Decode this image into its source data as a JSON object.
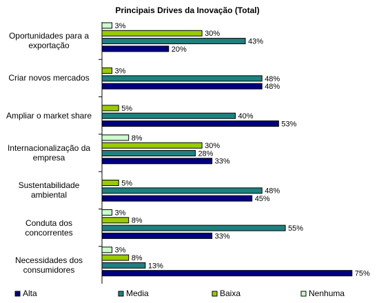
{
  "chart_data": {
    "type": "bar",
    "orientation": "horizontal",
    "title": "Principais Drives da Inovação (Total)",
    "categories": [
      "Oportunidades para a exportação",
      "Criar novos mercados",
      "Ampliar o market share",
      "Internacionalização da empresa",
      "Sustentabilidade ambiental",
      "Conduta dos concorrentes",
      "Necessidades dos consumidores"
    ],
    "xlim": [
      0,
      80
    ],
    "series": [
      {
        "name": "Alta",
        "color": "#000080",
        "values": [
          20,
          48,
          53,
          33,
          45,
          33,
          75
        ],
        "value_labels": [
          "20%",
          "48%",
          "53%",
          "33%",
          "45%",
          "33%",
          "75%"
        ]
      },
      {
        "name": "Media",
        "color": "#1f8080",
        "values": [
          43,
          48,
          40,
          28,
          48,
          55,
          13
        ],
        "value_labels": [
          "43%",
          "48%",
          "40%",
          "28%",
          "48%",
          "55%",
          "13%"
        ]
      },
      {
        "name": "Baixa",
        "color": "#99cc00",
        "values": [
          30,
          3,
          5,
          30,
          5,
          8,
          8
        ],
        "value_labels": [
          "30%",
          "3%",
          "5%",
          "30%",
          "5%",
          "8%",
          "8%"
        ]
      },
      {
        "name": "Nenhuma",
        "color": "#ccffcc",
        "values": [
          3,
          null,
          null,
          8,
          null,
          3,
          3
        ],
        "value_labels": [
          "3%",
          null,
          null,
          "8%",
          null,
          "3%",
          "3%"
        ]
      }
    ]
  }
}
